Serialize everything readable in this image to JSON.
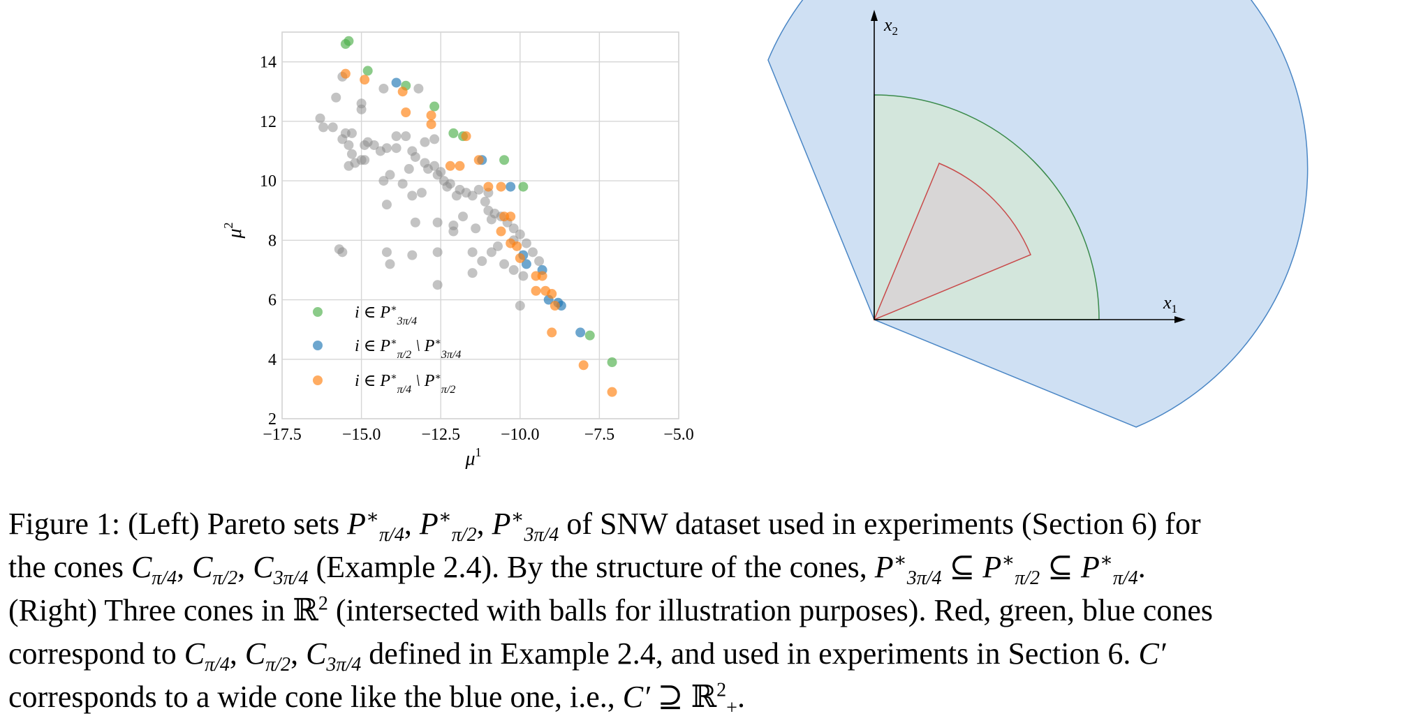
{
  "figure": {
    "left_plot": {
      "xlabel": "μ",
      "xlabel_sup": "1",
      "ylabel": "μ",
      "ylabel_sup": "2",
      "legend": [
        {
          "label": "i ∈ P*3π/4",
          "color": "#4daf4a"
        },
        {
          "label": "i ∈ P*π/2 \\ P*3π/4",
          "color": "#1f77b4"
        },
        {
          "label": "i ∈ P*π/4 \\ P*π/2",
          "color": "#ff7f0e"
        }
      ]
    },
    "right_plot": {
      "x_axis_label": "x",
      "x_axis_sub": "1",
      "y_axis_label": "x",
      "y_axis_sub": "2",
      "cones": [
        {
          "name": "C3π/4",
          "color": "blue",
          "fill": "#cfe0f3",
          "stroke": "#4a86c5"
        },
        {
          "name": "Cπ/2",
          "color": "green",
          "fill": "#d3e6dc",
          "stroke": "#3a8a4a"
        },
        {
          "name": "Cπ/4",
          "color": "red",
          "fill": "#d8d6d6",
          "stroke": "#c84a4a"
        }
      ]
    },
    "caption_lines": [
      "Figure 1: (Left) Pareto sets P*π/4, P*π/2, P*3π/4 of SNW dataset used in experiments (Section 6) for",
      "the cones Cπ/4, Cπ/2, C3π/4 (Example 2.4). By the structure of the cones, P*3π/4 ⊆ P*π/2 ⊆ P*π/4.",
      "(Right) Three cones in ℝ2 (intersected with balls for illustration purposes). Red, green, blue cones",
      "correspond to Cπ/4, Cπ/2, C3π/4 defined in Example 2.4, and used in experiments in Section 6. C′",
      "corresponds to a wide cone like the blue one, i.e., C′ ⊇ ℝ2+."
    ]
  },
  "chart_data": {
    "type": "scatter",
    "title": "",
    "xlabel": "μ1",
    "ylabel": "μ2",
    "xlim": [
      -17.5,
      -5.0
    ],
    "ylim": [
      2,
      15
    ],
    "xticks": [
      "−17.5",
      "−15.0",
      "−12.5",
      "−10.0",
      "−7.5",
      "−5.0"
    ],
    "yticks": [
      "2",
      "4",
      "6",
      "8",
      "10",
      "12",
      "14"
    ],
    "grid": true,
    "legend_position": "lower-left",
    "series": [
      {
        "name": "i ∈ P*3π/4",
        "color": "#4daf4a",
        "points": [
          [
            -15.4,
            14.7
          ],
          [
            -15.5,
            14.6
          ],
          [
            -14.8,
            13.7
          ],
          [
            -13.6,
            13.2
          ],
          [
            -12.7,
            12.5
          ],
          [
            -12.1,
            11.6
          ],
          [
            -11.8,
            11.5
          ],
          [
            -10.5,
            10.7
          ],
          [
            -9.9,
            9.8
          ],
          [
            -7.8,
            4.8
          ],
          [
            -7.1,
            3.9
          ]
        ]
      },
      {
        "name": "i ∈ P*π/2 \\ P*3π/4",
        "color": "#1f77b4",
        "points": [
          [
            -13.9,
            13.3
          ],
          [
            -11.2,
            10.7
          ],
          [
            -10.3,
            9.8
          ],
          [
            -9.9,
            7.5
          ],
          [
            -9.8,
            7.2
          ],
          [
            -9.3,
            7.0
          ],
          [
            -9.1,
            6.0
          ],
          [
            -8.8,
            5.9
          ],
          [
            -8.7,
            5.8
          ],
          [
            -8.1,
            4.9
          ]
        ]
      },
      {
        "name": "i ∈ P*π/4 \\ P*π/2",
        "color": "#ff7f0e",
        "points": [
          [
            -15.5,
            13.6
          ],
          [
            -14.9,
            13.4
          ],
          [
            -13.7,
            13.0
          ],
          [
            -13.6,
            12.3
          ],
          [
            -12.8,
            12.2
          ],
          [
            -12.8,
            11.9
          ],
          [
            -11.7,
            11.5
          ],
          [
            -12.2,
            10.5
          ],
          [
            -11.9,
            10.5
          ],
          [
            -11.3,
            10.7
          ],
          [
            -11.0,
            9.8
          ],
          [
            -10.6,
            9.8
          ],
          [
            -10.5,
            8.8
          ],
          [
            -10.3,
            8.8
          ],
          [
            -10.6,
            8.3
          ],
          [
            -10.3,
            7.9
          ],
          [
            -10.1,
            7.8
          ],
          [
            -10.0,
            7.4
          ],
          [
            -9.5,
            6.8
          ],
          [
            -9.5,
            6.3
          ],
          [
            -9.3,
            6.8
          ],
          [
            -9.2,
            6.3
          ],
          [
            -9.0,
            6.2
          ],
          [
            -8.9,
            5.8
          ],
          [
            -9.0,
            4.9
          ],
          [
            -8.0,
            3.8
          ],
          [
            -7.1,
            2.9
          ]
        ]
      },
      {
        "name": "other",
        "color": "#888888",
        "points": [
          [
            -15.6,
            13.5
          ],
          [
            -15.8,
            12.8
          ],
          [
            -16.3,
            12.1
          ],
          [
            -16.2,
            11.8
          ],
          [
            -15.9,
            11.8
          ],
          [
            -15.5,
            11.6
          ],
          [
            -15.6,
            11.4
          ],
          [
            -15.3,
            11.6
          ],
          [
            -15.0,
            12.4
          ],
          [
            -15.0,
            12.6
          ],
          [
            -14.3,
            13.1
          ],
          [
            -13.2,
            13.1
          ],
          [
            -14.8,
            11.3
          ],
          [
            -14.9,
            11.2
          ],
          [
            -14.6,
            11.2
          ],
          [
            -15.4,
            11.2
          ],
          [
            -15.3,
            10.9
          ],
          [
            -15.2,
            10.6
          ],
          [
            -15.0,
            10.7
          ],
          [
            -14.4,
            11.0
          ],
          [
            -14.2,
            11.1
          ],
          [
            -13.9,
            11.1
          ],
          [
            -13.9,
            11.5
          ],
          [
            -13.6,
            11.5
          ],
          [
            -13.4,
            11.0
          ],
          [
            -13.3,
            10.8
          ],
          [
            -13.0,
            11.3
          ],
          [
            -12.7,
            11.4
          ],
          [
            -13.0,
            10.6
          ],
          [
            -12.7,
            10.5
          ],
          [
            -12.6,
            10.2
          ],
          [
            -12.4,
            10.0
          ],
          [
            -12.2,
            9.9
          ],
          [
            -11.9,
            9.7
          ],
          [
            -11.7,
            9.6
          ],
          [
            -11.5,
            9.5
          ],
          [
            -11.3,
            9.7
          ],
          [
            -11.1,
            9.3
          ],
          [
            -11.0,
            9.0
          ],
          [
            -10.8,
            8.9
          ],
          [
            -10.6,
            8.8
          ],
          [
            -10.4,
            8.6
          ],
          [
            -10.2,
            8.4
          ],
          [
            -10.0,
            8.2
          ],
          [
            -9.8,
            7.9
          ],
          [
            -9.6,
            7.6
          ],
          [
            -9.4,
            7.3
          ],
          [
            -12.0,
            9.5
          ],
          [
            -12.3,
            9.8
          ],
          [
            -12.5,
            10.3
          ],
          [
            -12.9,
            10.4
          ],
          [
            -13.5,
            10.4
          ],
          [
            -14.1,
            10.2
          ],
          [
            -14.3,
            10.0
          ],
          [
            -13.7,
            9.9
          ],
          [
            -13.1,
            9.6
          ],
          [
            -14.2,
            9.2
          ],
          [
            -13.3,
            8.6
          ],
          [
            -12.6,
            8.6
          ],
          [
            -13.4,
            9.5
          ],
          [
            -12.1,
            8.5
          ],
          [
            -11.8,
            8.8
          ],
          [
            -11.4,
            8.4
          ],
          [
            -12.6,
            7.6
          ],
          [
            -11.5,
            7.6
          ],
          [
            -11.2,
            7.3
          ],
          [
            -10.9,
            7.6
          ],
          [
            -10.7,
            7.8
          ],
          [
            -10.5,
            7.2
          ],
          [
            -10.2,
            7.0
          ],
          [
            -9.9,
            6.8
          ],
          [
            -11.5,
            6.9
          ],
          [
            -12.6,
            6.5
          ],
          [
            -10.0,
            5.8
          ],
          [
            -13.4,
            7.5
          ],
          [
            -14.2,
            7.6
          ],
          [
            -14.1,
            7.2
          ],
          [
            -15.7,
            7.7
          ],
          [
            -15.6,
            7.6
          ],
          [
            -14.9,
            10.7
          ],
          [
            -15.4,
            10.5
          ],
          [
            -12.1,
            8.3
          ],
          [
            -10.9,
            8.7
          ],
          [
            -10.2,
            8.0
          ],
          [
            -11.0,
            9.6
          ]
        ]
      }
    ]
  }
}
